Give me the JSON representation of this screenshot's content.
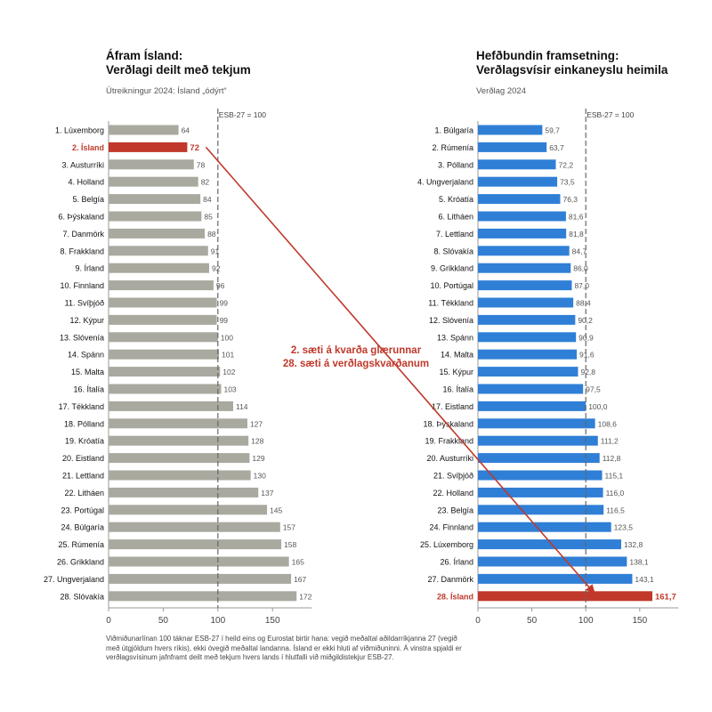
{
  "left": {
    "title_line1": "Áfram Ísland:",
    "title_line2": "Verðlagi deilt með tekjum",
    "subtitle": "Útreikningur 2024: Ísland „ódýrt“",
    "reference_label": "ESB-27 = 100",
    "highlight_color": "#c0392b",
    "bar_color": "#a9a99f"
  },
  "right": {
    "title_line1": "Hefðbundin framsetning:",
    "title_line2": "Verðlagsvísir einkaneyslu heimila",
    "subtitle": "Verðlag 2024",
    "reference_label": "ESB-27 = 100",
    "highlight_color": "#c0392b",
    "bar_color": "#2f7fd6"
  },
  "annotation": {
    "line1": "2. sæti á kvarða glærunnar",
    "line2": "28. sæti á verðlagskvarðanum"
  },
  "footnote": "Viðmiðunarlínan 100 táknar ESB-27 í heild eins og Eurostat birtir hana: vegið meðaltal aðildarríkjanna 27 (vegið með útgjöldum hvers ríkis), ekki óvegið meðaltal landanna. Ísland er ekki hluti af viðmiðuninni. Á vinstra spjaldi er verðlagsvísinum jafnframt deilt með tekjum hvers lands í hlutfalli við miðgildistekjur ESB-27.",
  "chart_data": [
    {
      "type": "bar",
      "orientation": "horizontal",
      "title": "Áfram Ísland: Verðlagi deilt með tekjum",
      "subtitle": "Útreikningur 2024: Ísland „ódýrt“",
      "reference_line": 100,
      "xlim": [
        0,
        190
      ],
      "xticks": [
        0,
        50,
        100,
        150
      ],
      "highlight": "2. Ísland",
      "categories": [
        "1. Lúxemborg",
        "2. Ísland",
        "3. Austurríki",
        "4. Holland",
        "5. Belgía",
        "6. Þýskaland",
        "7. Danmörk",
        "8. Frakkland",
        "9. Írland",
        "10. Finnland",
        "11. Svíþjóð",
        "12. Kýpur",
        "13. Slóvenía",
        "14. Spánn",
        "15. Malta",
        "16. Ítalía",
        "17. Tékkland",
        "18. Pólland",
        "19. Króatía",
        "20. Eistland",
        "21. Lettland",
        "22. Litháen",
        "23. Portúgal",
        "24. Búlgaría",
        "25. Rúmenía",
        "26. Grikkland",
        "27. Ungverjaland",
        "28. Slóvakía"
      ],
      "values": [
        64,
        72,
        78,
        82,
        84,
        85,
        88,
        91,
        92,
        96,
        99,
        99,
        100,
        101,
        102,
        103,
        114,
        127,
        128,
        129,
        130,
        137,
        145,
        157,
        158,
        165,
        167,
        172
      ],
      "value_labels": [
        "64",
        "72",
        "78",
        "82",
        "84",
        "85",
        "88",
        "91",
        "92",
        "96",
        "99",
        "99",
        "100",
        "101",
        "102",
        "103",
        "114",
        "127",
        "128",
        "129",
        "130",
        "137",
        "145",
        "157",
        "158",
        "165",
        "167",
        "172"
      ]
    },
    {
      "type": "bar",
      "orientation": "horizontal",
      "title": "Hefðbundin framsetning: Verðlagsvísir einkaneyslu heimila",
      "subtitle": "Verðlag 2024",
      "reference_line": 100,
      "xlim": [
        0,
        190
      ],
      "xticks": [
        0,
        50,
        100,
        150
      ],
      "highlight": "28. Ísland",
      "categories": [
        "1. Búlgaría",
        "2. Rúmenía",
        "3. Pólland",
        "4. Ungverjaland",
        "5. Króatía",
        "6. Litháen",
        "7. Lettland",
        "8. Slóvakía",
        "9. Grikkland",
        "10. Portúgal",
        "11. Tékkland",
        "12. Slóvenía",
        "13. Spánn",
        "14. Malta",
        "15. Kýpur",
        "16. Ítalía",
        "17. Eistland",
        "18. Þýskaland",
        "19. Frakkland",
        "20. Austurríki",
        "21. Svíþjóð",
        "22. Holland",
        "23. Belgía",
        "24. Finnland",
        "25. Lúxemborg",
        "26. Írland",
        "27. Danmörk",
        "28. Ísland"
      ],
      "values": [
        59.7,
        63.7,
        72.2,
        73.5,
        76.3,
        81.6,
        81.8,
        84.7,
        86.0,
        87.0,
        88.4,
        90.2,
        90.9,
        91.6,
        92.8,
        97.5,
        100.0,
        108.6,
        111.2,
        112.8,
        115.1,
        116.0,
        116.5,
        123.5,
        132.8,
        138.1,
        143.1,
        161.7
      ],
      "value_labels": [
        "59,7",
        "63,7",
        "72,2",
        "73,5",
        "76,3",
        "81,6",
        "81,8",
        "84,7",
        "86,0",
        "87,0",
        "88,4",
        "90,2",
        "90,9",
        "91,6",
        "92,8",
        "97,5",
        "100,0",
        "108,6",
        "111,2",
        "112,8",
        "115,1",
        "116,0",
        "116,5",
        "123,5",
        "132,8",
        "138,1",
        "143,1",
        "161,7"
      ]
    }
  ]
}
